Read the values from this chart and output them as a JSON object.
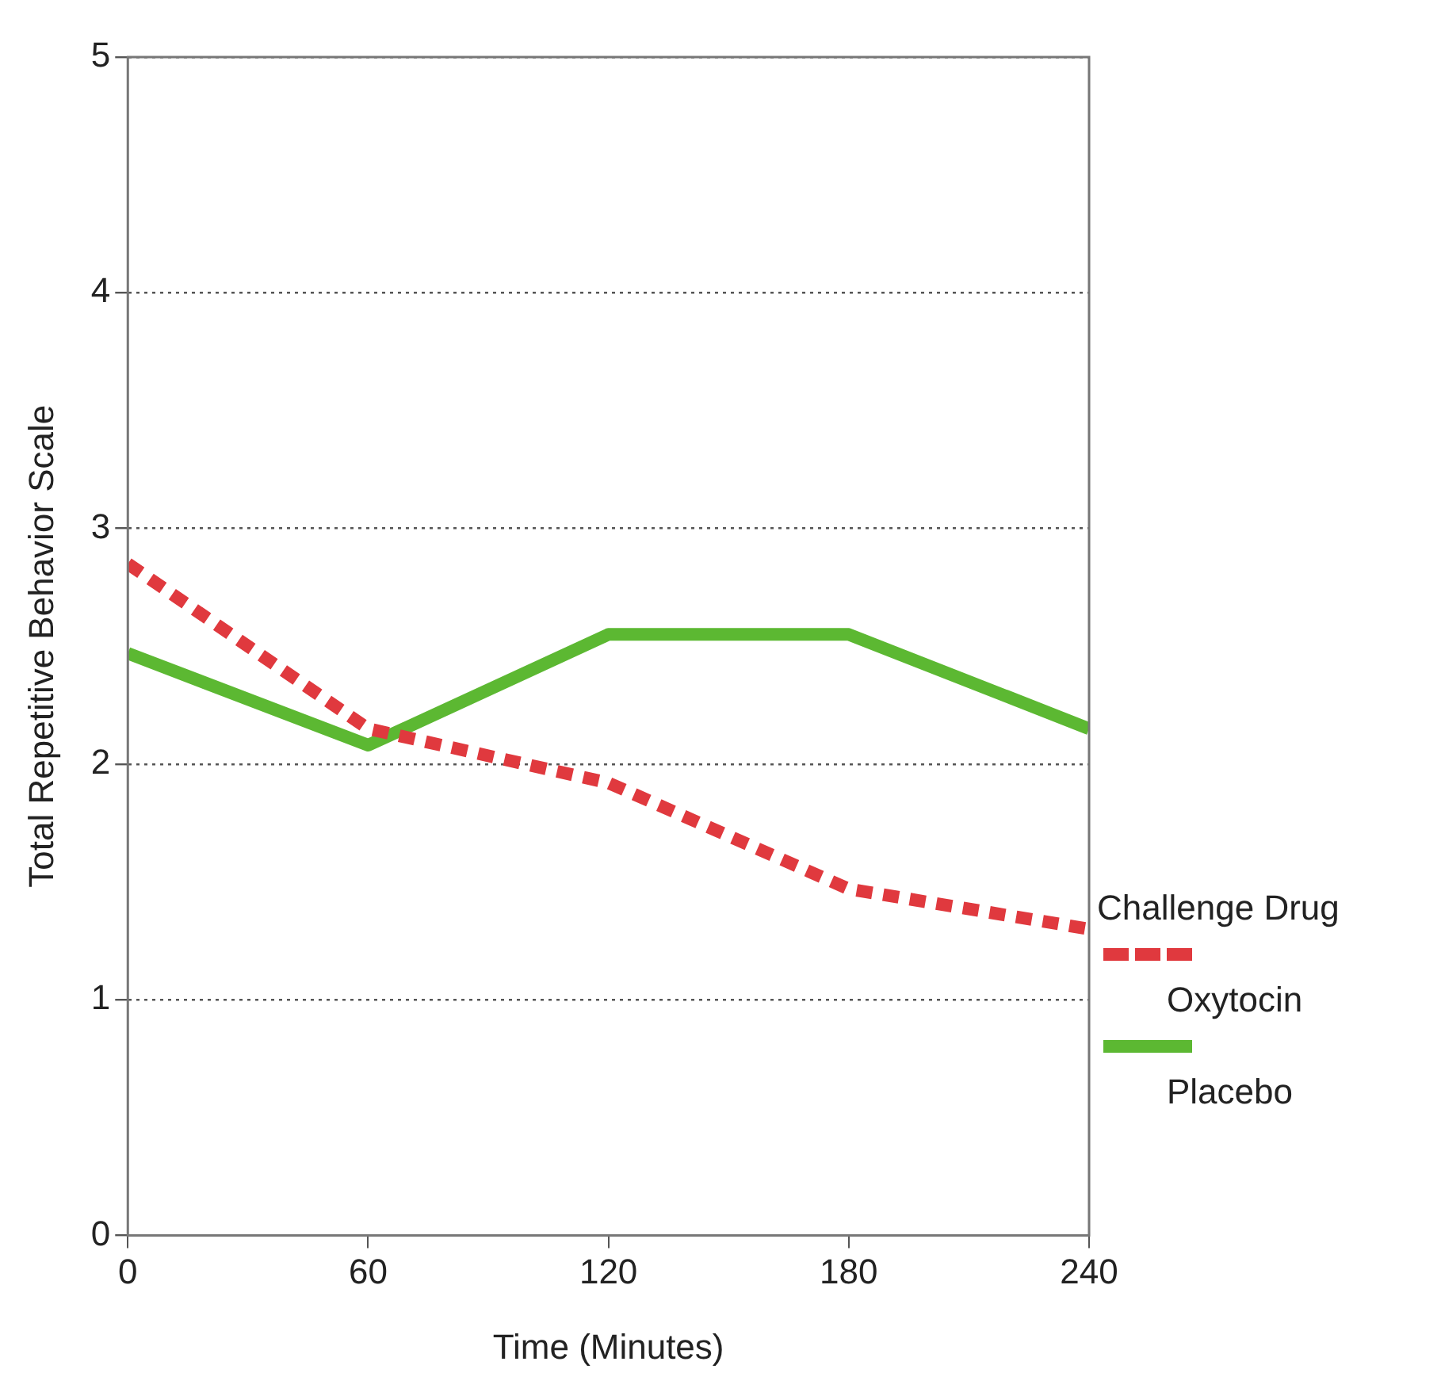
{
  "chart_data": {
    "type": "line",
    "xlabel": "Time (Minutes)",
    "ylabel": "Total Repetitive Behavior Scale",
    "legend_title": "Challenge Drug",
    "x": [
      0,
      60,
      120,
      180,
      240
    ],
    "series": [
      {
        "name": "Oxytocin",
        "color": "#e0393e",
        "line_style": "dashed",
        "values": [
          2.85,
          2.15,
          1.92,
          1.47,
          1.3
        ]
      },
      {
        "name": "Placebo",
        "color": "#5cb832",
        "line_style": "solid",
        "values": [
          2.47,
          2.08,
          2.55,
          2.55,
          2.15
        ]
      }
    ],
    "xlim": [
      0,
      240
    ],
    "xticks": [
      0,
      60,
      120,
      180,
      240
    ],
    "ylim": [
      0,
      5
    ],
    "yticks": [
      0,
      1,
      2,
      3,
      4,
      5
    ],
    "grid": "y",
    "legend": "right",
    "marker": "none"
  }
}
